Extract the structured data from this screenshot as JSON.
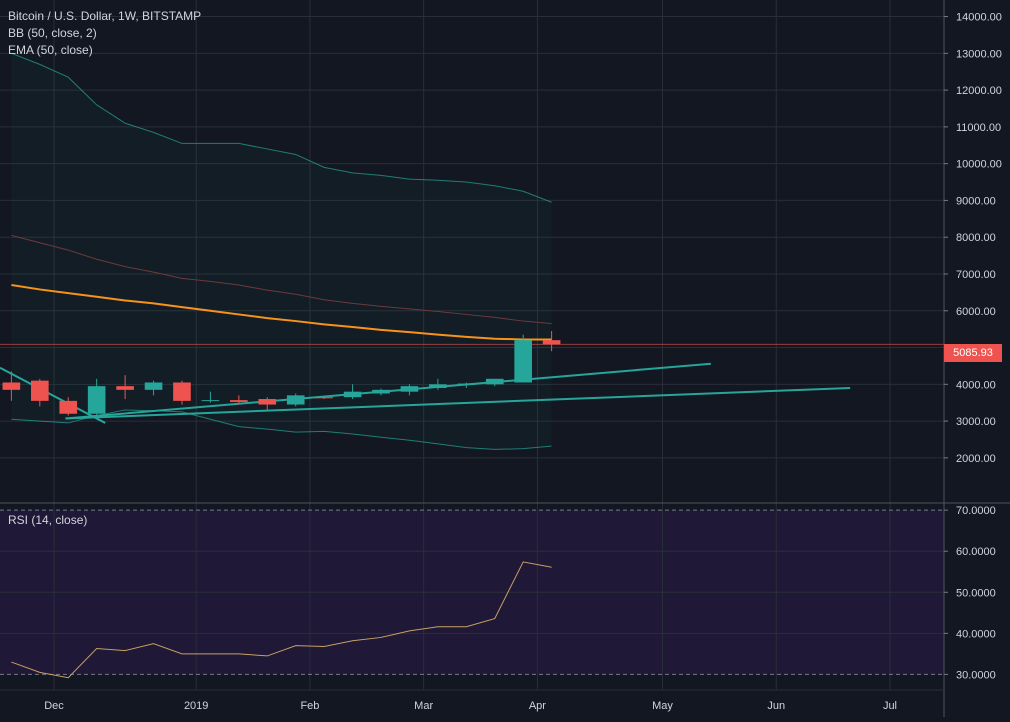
{
  "legend": {
    "symbol": "Bitcoin / U.S. Dollar, 1W, BITSTAMP",
    "bb": "BB (50, close, 2)",
    "ema": "EMA (50, close)",
    "rsi": "RSI (14, close)"
  },
  "last_price_label": "5085.93",
  "colors": {
    "background": "#131722",
    "up": "#26a69a",
    "down": "#ef5350",
    "ema": "#f7931a",
    "bb_band": "#26a69a",
    "bb_basis": "#6d3a3a",
    "trendline": "#26a69a",
    "rsi_line": "#c8a064",
    "rsi_band": "#1f1836"
  },
  "chart_data": [
    {
      "type": "candlestick",
      "title": "Bitcoin / U.S. Dollar, 1W, BITSTAMP",
      "y_ticks": [
        "14000.00",
        "13000.00",
        "12000.00",
        "11000.00",
        "10000.00",
        "9000.00",
        "8000.00",
        "7000.00",
        "6000.00",
        "5000.00",
        "4000.00",
        "3000.00",
        "2000.00"
      ],
      "ylim": [
        800,
        14450
      ],
      "x_ticks": [
        {
          "label": "Dec",
          "week": 1.5
        },
        {
          "label": "2019",
          "week": 6.5
        },
        {
          "label": "Feb",
          "week": 10.5
        },
        {
          "label": "Mar",
          "week": 14.5
        },
        {
          "label": "Apr",
          "week": 18.5
        },
        {
          "label": "May",
          "week": 22.9
        },
        {
          "label": "Jun",
          "week": 26.9
        },
        {
          "label": "Jul",
          "week": 30.9
        }
      ],
      "xlim": [
        -0.4,
        32.8
      ],
      "candles": [
        {
          "o": 4050,
          "h": 4350,
          "l": 3550,
          "c": 3850
        },
        {
          "o": 4100,
          "h": 4150,
          "l": 3400,
          "c": 3550
        },
        {
          "o": 3550,
          "h": 3650,
          "l": 3150,
          "c": 3200
        },
        {
          "o": 3200,
          "h": 4150,
          "l": 3150,
          "c": 3950
        },
        {
          "o": 3950,
          "h": 4250,
          "l": 3600,
          "c": 3850
        },
        {
          "o": 3850,
          "h": 4100,
          "l": 3700,
          "c": 4050
        },
        {
          "o": 4050,
          "h": 4100,
          "l": 3450,
          "c": 3550
        },
        {
          "o": 3550,
          "h": 3800,
          "l": 3500,
          "c": 3570
        },
        {
          "o": 3570,
          "h": 3700,
          "l": 3450,
          "c": 3520
        },
        {
          "o": 3600,
          "h": 3650,
          "l": 3300,
          "c": 3450
        },
        {
          "o": 3450,
          "h": 3750,
          "l": 3400,
          "c": 3700
        },
        {
          "o": 3650,
          "h": 3650,
          "l": 3600,
          "c": 3620
        },
        {
          "o": 3650,
          "h": 4000,
          "l": 3600,
          "c": 3800
        },
        {
          "o": 3750,
          "h": 3880,
          "l": 3700,
          "c": 3850
        },
        {
          "o": 3800,
          "h": 4000,
          "l": 3700,
          "c": 3950
        },
        {
          "o": 3900,
          "h": 4150,
          "l": 3850,
          "c": 4000
        },
        {
          "o": 3980,
          "h": 4050,
          "l": 3900,
          "c": 4020
        },
        {
          "o": 4000,
          "h": 4150,
          "l": 3950,
          "c": 4150
        },
        {
          "o": 4050,
          "h": 5350,
          "l": 4050,
          "c": 5200
        },
        {
          "o": 5200,
          "h": 5450,
          "l": 4900,
          "c": 5086
        }
      ],
      "bb_upper": [
        13000,
        12700,
        12350,
        11600,
        11100,
        10850,
        10550,
        10550,
        10550,
        10400,
        10250,
        9900,
        9750,
        9680,
        9580,
        9550,
        9500,
        9400,
        9250,
        8950
      ],
      "bb_basis": [
        8050,
        7850,
        7650,
        7400,
        7200,
        7050,
        6880,
        6800,
        6700,
        6560,
        6450,
        6300,
        6200,
        6120,
        6050,
        5980,
        5900,
        5820,
        5720,
        5650
      ],
      "bb_lower": [
        3050,
        3000,
        2950,
        3150,
        3300,
        3280,
        3250,
        3050,
        2850,
        2780,
        2700,
        2720,
        2650,
        2560,
        2480,
        2380,
        2280,
        2230,
        2250,
        2320
      ],
      "ema": [
        6700,
        6580,
        6480,
        6380,
        6280,
        6200,
        6100,
        6000,
        5900,
        5800,
        5720,
        5630,
        5560,
        5480,
        5420,
        5350,
        5290,
        5240,
        5220,
        5220
      ],
      "last_price": 5085.93,
      "trendlines": [
        {
          "x1": -0.4,
          "y1": 4450,
          "x2": 3.3,
          "y2": 2950
        },
        {
          "x1": 1.9,
          "y1": 3070,
          "x2": 24.6,
          "y2": 4560
        },
        {
          "x1": 1.9,
          "y1": 3070,
          "x2": 29.5,
          "y2": 3900
        }
      ]
    },
    {
      "type": "line",
      "title": "RSI (14, close)",
      "y_ticks": [
        "70.0000",
        "60.0000",
        "50.0000",
        "40.0000",
        "30.0000"
      ],
      "ylim": [
        26.2,
        71.5
      ],
      "band": [
        30,
        70
      ],
      "values": [
        33,
        30.5,
        29.2,
        36.3,
        35.8,
        37.5,
        35,
        35,
        35,
        34.5,
        37,
        36.8,
        38.2,
        39,
        40.6,
        41.6,
        41.6,
        43.6,
        57.4,
        56.1
      ]
    }
  ]
}
